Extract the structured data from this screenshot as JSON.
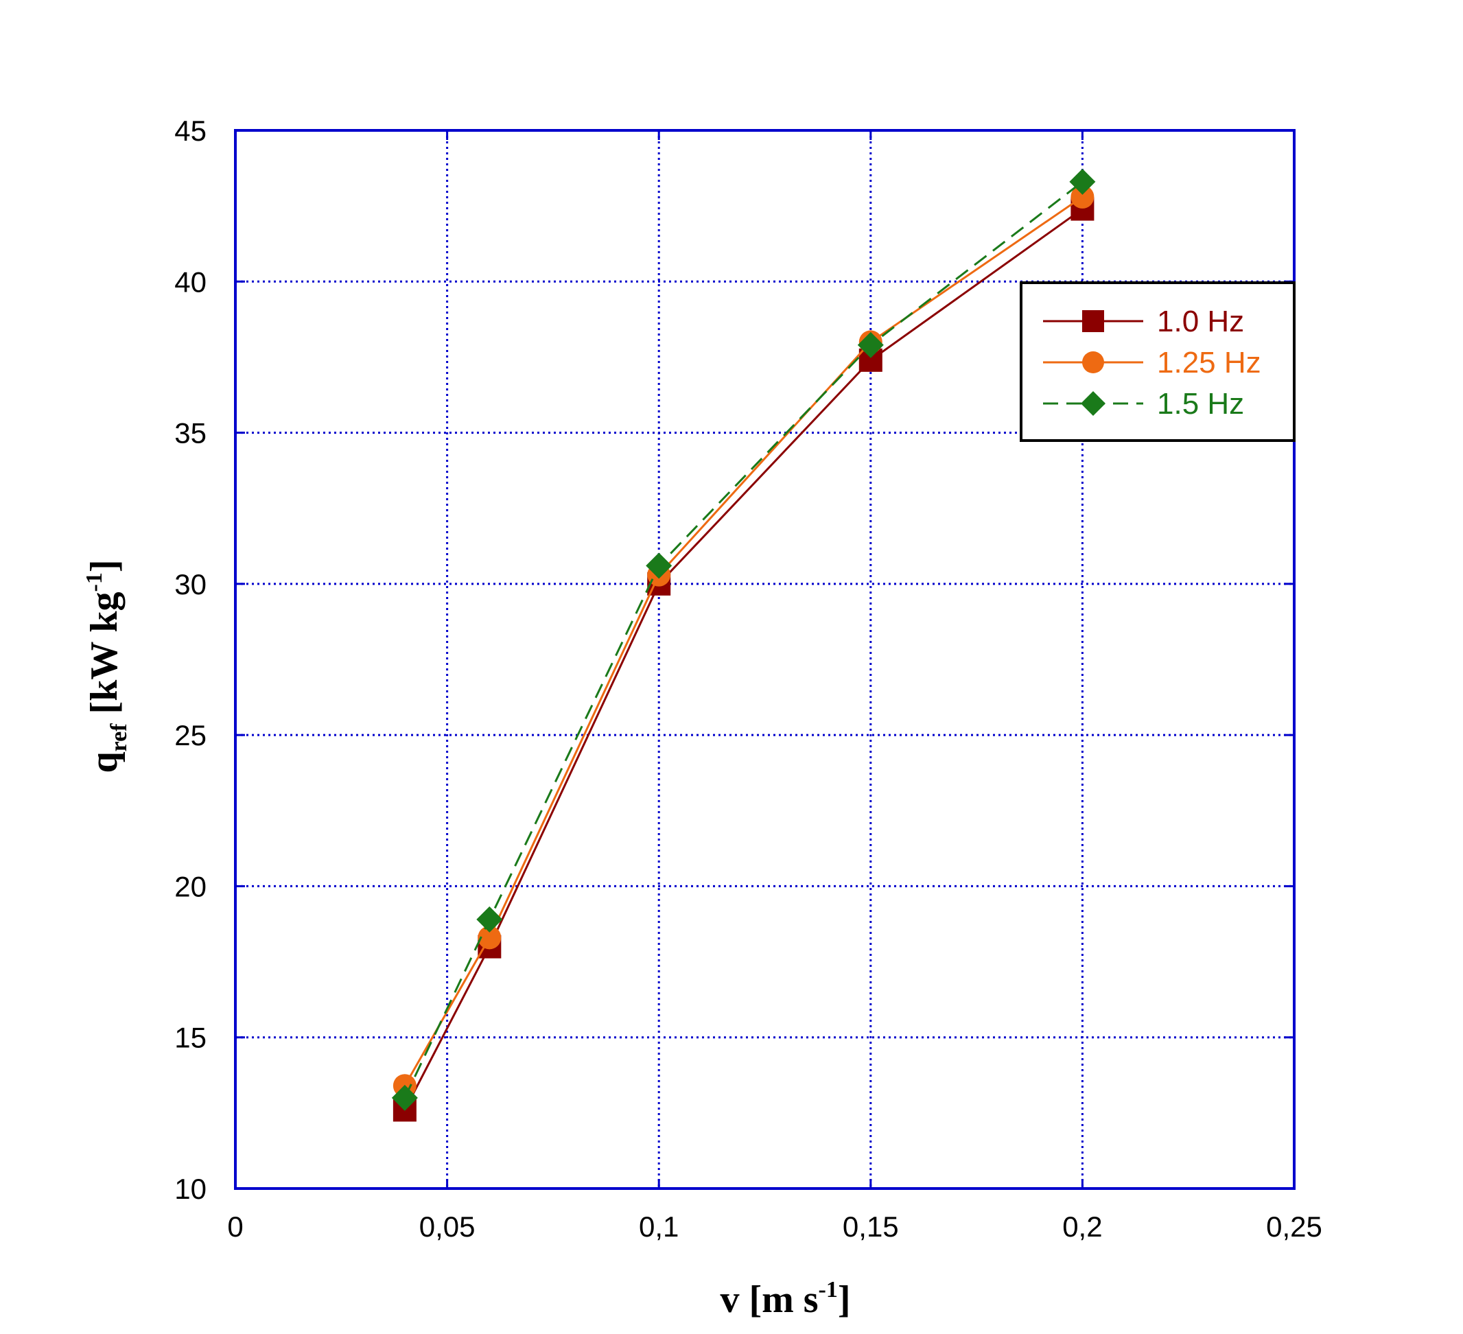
{
  "chart_data": {
    "type": "line",
    "xlabel": {
      "main": "v [m s",
      "sup": "-1",
      "end": "]"
    },
    "ylabel": {
      "main": "q",
      "sub": "ref",
      "mid": " [kW kg",
      "sup": "-1",
      "end": "]"
    },
    "xlim": [
      0,
      0.25
    ],
    "ylim": [
      10,
      45
    ],
    "x_ticks": [
      0,
      0.05,
      0.1,
      0.15,
      0.2,
      0.25
    ],
    "x_tick_labels": [
      "0",
      "0,05",
      "0,1",
      "0,15",
      "0,2",
      "0,25"
    ],
    "y_ticks": [
      10,
      15,
      20,
      25,
      30,
      35,
      40,
      45
    ],
    "y_tick_labels": [
      "10",
      "15",
      "20",
      "25",
      "30",
      "35",
      "40",
      "45"
    ],
    "grid": true,
    "legend_position": "top-right",
    "x": [
      0.04,
      0.06,
      0.1,
      0.15,
      0.2
    ],
    "series": [
      {
        "name": "1.0 Hz",
        "values": [
          12.6,
          18.0,
          30.0,
          37.4,
          42.4
        ],
        "color": "#8b0000",
        "marker": "square",
        "dash": "solid"
      },
      {
        "name": "1.25 Hz",
        "values": [
          13.4,
          18.3,
          30.3,
          38.0,
          42.8
        ],
        "color": "#ee6a12",
        "marker": "circle",
        "dash": "solid"
      },
      {
        "name": "1.5 Hz",
        "values": [
          13.0,
          18.9,
          30.6,
          37.9,
          43.3
        ],
        "color": "#1a7a1a",
        "marker": "diamond",
        "dash": "dashed"
      }
    ]
  },
  "colors": {
    "axis": "#0000cc",
    "grid": "#0000cc"
  }
}
